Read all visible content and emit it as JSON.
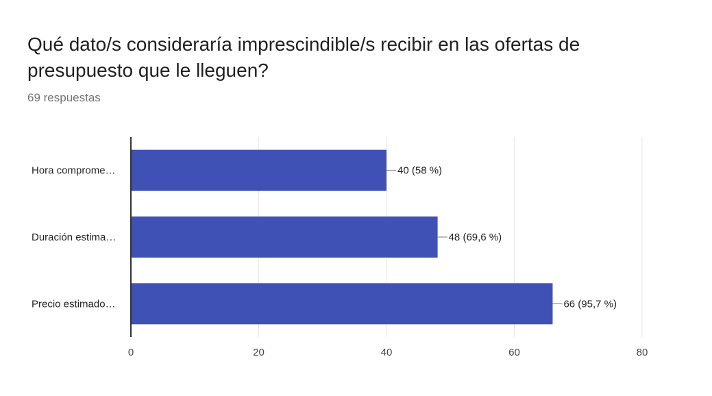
{
  "title": "Qué dato/s consideraría imprescindible/s recibir en las ofertas de presupuesto que le lleguen?",
  "subtitle": "69 respuestas",
  "colors": {
    "bar": "#3f51b5",
    "grid": "#e6e6e6",
    "axis": "#333333",
    "leader": "#777777"
  },
  "chart_data": {
    "type": "bar",
    "orientation": "horizontal",
    "categories": [
      "Hora comprome…",
      "Duración estima…",
      "Precio estimado…"
    ],
    "values": [
      40,
      48,
      66
    ],
    "data_labels": [
      "40 (58 %)",
      "48 (69,6 %)",
      "66 (95,7 %)"
    ],
    "xlim": [
      0,
      80
    ],
    "xticks": [
      0,
      20,
      40,
      60,
      80
    ],
    "grid": true,
    "legend": "none"
  }
}
